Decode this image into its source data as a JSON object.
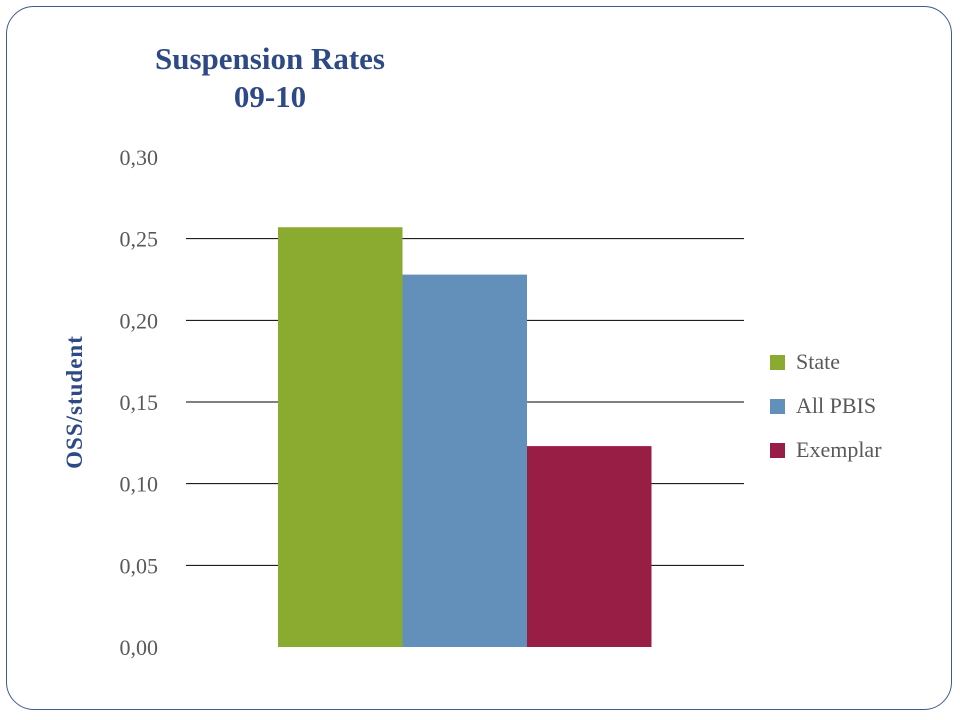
{
  "chart_data": {
    "type": "bar",
    "title": "Suspension Rates",
    "subtitle": "09-10",
    "ylabel": "OSS/student",
    "xlabel": "",
    "ylim": [
      0,
      0.3
    ],
    "yticks": [
      0.0,
      0.05,
      0.1,
      0.15,
      0.2,
      0.25,
      0.3
    ],
    "ytick_labels": [
      "0,00",
      "0,05",
      "0,10",
      "0,15",
      "0,20",
      "0,25",
      "0,30"
    ],
    "grid": true,
    "legend_position": "right",
    "series": [
      {
        "name": "State",
        "values": [
          0.257
        ],
        "color": "#8aaa30"
      },
      {
        "name": "All PBIS",
        "values": [
          0.228
        ],
        "color": "#6390bb"
      },
      {
        "name": "Exemplar",
        "values": [
          0.123
        ],
        "color": "#991e45"
      }
    ]
  }
}
